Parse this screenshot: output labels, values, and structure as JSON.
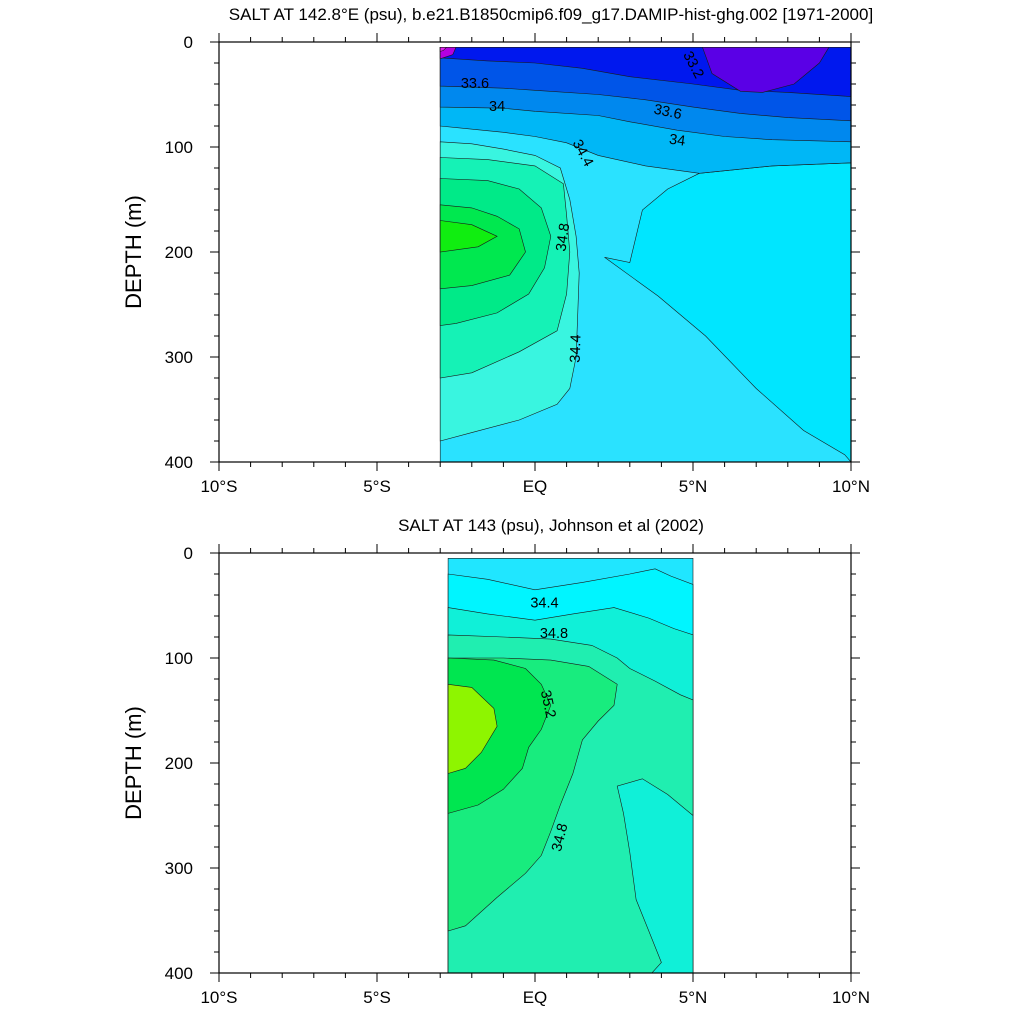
{
  "chart_data": [
    {
      "type": "contour",
      "title": "SALT AT 142.8°E (psu), b.e21.B1850cmip6.f09_g17.DAMIP-hist-ghg.002 [1971-2000]",
      "xlabel": "",
      "ylabel": "DEPTH (m)",
      "xlim": [
        -10,
        10
      ],
      "ylim": [
        400,
        0
      ],
      "x_ticks": [
        -10,
        -5,
        0,
        5,
        10
      ],
      "x_tick_labels": [
        "10°S",
        "5°S",
        "EQ",
        "5°N",
        "10°N"
      ],
      "y_ticks": [
        0,
        100,
        200,
        300,
        400
      ],
      "y_tick_labels": [
        "0",
        "100",
        "200",
        "300",
        "400"
      ],
      "data_extent": {
        "lat": [
          -3,
          10
        ],
        "depth": [
          5,
          400
        ]
      },
      "contour_interval": 0.2,
      "regions": [
        {
          "level": 34.2,
          "color": "#2ae2ff",
          "polygon": [
            [
              -3,
              5
            ],
            [
              10,
              5
            ],
            [
              10,
              400
            ],
            [
              -3,
              400
            ]
          ]
        },
        {
          "level": 34.4,
          "color": "#00e6ff",
          "polygon": [
            [
              3,
              210
            ],
            [
              3.4,
              160
            ],
            [
              4.2,
              140
            ],
            [
              5.2,
              125
            ],
            [
              7.5,
              118
            ],
            [
              10,
              115
            ],
            [
              10,
              400
            ],
            [
              9.8,
              393
            ],
            [
              8.5,
              370
            ],
            [
              7,
              330
            ],
            [
              5.4,
              280
            ],
            [
              3.9,
              242
            ],
            [
              2.2,
              205
            ]
          ]
        },
        {
          "level": 34.0,
          "color": "#00b7f6",
          "polygon": [
            [
              -3,
              5
            ],
            [
              10,
              5
            ],
            [
              10,
              115
            ],
            [
              7.5,
              118
            ],
            [
              5.2,
              125
            ],
            [
              3.5,
              118
            ],
            [
              2,
              108
            ],
            [
              1,
              96
            ],
            [
              0,
              90
            ],
            [
              -1,
              86
            ],
            [
              -3,
              80
            ]
          ]
        },
        {
          "level": 33.8,
          "color": "#0088ee",
          "polygon": [
            [
              -3,
              5
            ],
            [
              10,
              5
            ],
            [
              10,
              95
            ],
            [
              7.5,
              93
            ],
            [
              6,
              90
            ],
            [
              4.5,
              84
            ],
            [
              3,
              76
            ],
            [
              2,
              70
            ],
            [
              0,
              66
            ],
            [
              -1,
              63
            ],
            [
              -3,
              62
            ]
          ]
        },
        {
          "level": 33.6,
          "color": "#0055e8",
          "polygon": [
            [
              -3,
              5
            ],
            [
              10,
              5
            ],
            [
              10,
              75
            ],
            [
              8,
              72
            ],
            [
              6.5,
              68
            ],
            [
              5,
              62
            ],
            [
              3.5,
              55
            ],
            [
              2,
              50
            ],
            [
              0,
              46
            ],
            [
              -1,
              44
            ],
            [
              -3,
              42
            ]
          ]
        },
        {
          "level": 33.4,
          "color": "#0018ee",
          "polygon": [
            [
              -3,
              5
            ],
            [
              10,
              5
            ],
            [
              10,
              52
            ],
            [
              8,
              48
            ],
            [
              6.5,
              46
            ],
            [
              5,
              40
            ],
            [
              3,
              33
            ],
            [
              1.5,
              25
            ],
            [
              0,
              20
            ],
            [
              -1.5,
              18
            ],
            [
              -3,
              15
            ]
          ]
        },
        {
          "level": 33.2,
          "color": "#5a00e6",
          "polygon": [
            [
              5.3,
              5
            ],
            [
              9.3,
              5
            ],
            [
              9,
              20
            ],
            [
              8.2,
              40
            ],
            [
              7.2,
              48
            ],
            [
              6.5,
              47
            ],
            [
              5.6,
              30
            ]
          ]
        },
        {
          "level": 34.4,
          "color": "#39f5e0",
          "polygon": [
            [
              -3,
              95
            ],
            [
              -2,
              97
            ],
            [
              -1,
              102
            ],
            [
              0,
              108
            ],
            [
              0.8,
              120
            ],
            [
              1.1,
              150
            ],
            [
              1.3,
              185
            ],
            [
              1.4,
              220
            ],
            [
              1.35,
              260
            ],
            [
              1.3,
              300
            ],
            [
              1.1,
              330
            ],
            [
              0.7,
              345
            ],
            [
              -0.5,
              360
            ],
            [
              -2,
              372
            ],
            [
              -3,
              380
            ]
          ]
        },
        {
          "level": 34.6,
          "color": "#15f2b6",
          "polygon": [
            [
              -3,
              110
            ],
            [
              -1.5,
              112
            ],
            [
              0,
              118
            ],
            [
              0.9,
              135
            ],
            [
              1.0,
              165
            ],
            [
              1.1,
              200
            ],
            [
              1.0,
              240
            ],
            [
              0.7,
              275
            ],
            [
              -0.5,
              295
            ],
            [
              -2,
              315
            ],
            [
              -3,
              320
            ]
          ]
        },
        {
          "level": 34.8,
          "color": "#00ea88",
          "polygon": [
            [
              -3,
              130
            ],
            [
              -1.5,
              132
            ],
            [
              -0.5,
              140
            ],
            [
              0.2,
              158
            ],
            [
              0.5,
              185
            ],
            [
              0.3,
              215
            ],
            [
              -0.2,
              240
            ],
            [
              -1.2,
              258
            ],
            [
              -2.5,
              268
            ],
            [
              -3,
              270
            ]
          ]
        },
        {
          "level": 35.0,
          "color": "#00e84f",
          "polygon": [
            [
              -3,
              155
            ],
            [
              -2,
              158
            ],
            [
              -1.2,
              166
            ],
            [
              -0.5,
              178
            ],
            [
              -0.3,
              200
            ],
            [
              -0.8,
              222
            ],
            [
              -2,
              232
            ],
            [
              -3,
              235
            ]
          ]
        },
        {
          "level": 35.2,
          "color": "#10ee10",
          "polygon": [
            [
              -3,
              170
            ],
            [
              -2,
              174
            ],
            [
              -1.2,
              185
            ],
            [
              -1.8,
              195
            ],
            [
              -3,
              200
            ]
          ]
        },
        {
          "level": 33.0,
          "color": "#b400e0",
          "polygon": [
            [
              -3,
              5
            ],
            [
              -2.5,
              5
            ],
            [
              -2.6,
              12
            ],
            [
              -3,
              16
            ]
          ]
        },
        {
          "level": 32.8,
          "color": "#e21ef0",
          "polygon": [
            [
              -3,
              5
            ],
            [
              -2.8,
              5
            ],
            [
              -2.9,
              8
            ],
            [
              -3,
              9
            ]
          ]
        }
      ],
      "contour_labels": [
        {
          "text": "33.2",
          "x": 5.0,
          "y": 22,
          "angle": 62
        },
        {
          "text": "33.6",
          "x": -1.9,
          "y": 40,
          "angle": 0
        },
        {
          "text": "34",
          "x": -1.2,
          "y": 62,
          "angle": 0
        },
        {
          "text": "33.6",
          "x": 4.2,
          "y": 67,
          "angle": 12
        },
        {
          "text": "34",
          "x": 4.5,
          "y": 94,
          "angle": 8
        },
        {
          "text": "34.4",
          "x": 1.5,
          "y": 106,
          "angle": 62
        },
        {
          "text": "34.8",
          "x": 0.9,
          "y": 186,
          "angle": -82
        },
        {
          "text": "34.4",
          "x": 1.3,
          "y": 292,
          "angle": -88
        }
      ]
    },
    {
      "type": "contour",
      "title": "SALT AT 143 (psu), Johnson et al (2002)",
      "xlabel": "",
      "ylabel": "DEPTH (m)",
      "xlim": [
        -10,
        10
      ],
      "ylim": [
        400,
        0
      ],
      "x_ticks": [
        -10,
        -5,
        0,
        5,
        10
      ],
      "x_tick_labels": [
        "10°S",
        "5°S",
        "EQ",
        "5°N",
        "10°N"
      ],
      "y_ticks": [
        0,
        100,
        200,
        300,
        400
      ],
      "y_tick_labels": [
        "0",
        "100",
        "200",
        "300",
        "400"
      ],
      "data_extent": {
        "lat": [
          -2.75,
          5
        ],
        "depth": [
          5,
          400
        ]
      },
      "contour_interval": 0.2,
      "regions": [
        {
          "level": 34.2,
          "color": "#20e6ff",
          "polygon": [
            [
              -2.75,
              5
            ],
            [
              5,
              5
            ],
            [
              5,
              400
            ],
            [
              -2.75,
              400
            ]
          ]
        },
        {
          "level": 34.4,
          "color": "#00f5ff",
          "polygon": [
            [
              -2.75,
              20
            ],
            [
              -1.5,
              25
            ],
            [
              0,
              35
            ],
            [
              1.5,
              28
            ],
            [
              3,
              20
            ],
            [
              3.8,
              15
            ],
            [
              4.3,
              22
            ],
            [
              5,
              30
            ],
            [
              5,
              400
            ],
            [
              -2.75,
              400
            ]
          ]
        },
        {
          "level": 34.6,
          "color": "#10f0d8",
          "polygon": [
            [
              -2.75,
              52
            ],
            [
              -1.5,
              58
            ],
            [
              0,
              64
            ],
            [
              1.2,
              58
            ],
            [
              2.5,
              52
            ],
            [
              3.6,
              62
            ],
            [
              4.4,
              72
            ],
            [
              5,
              78
            ],
            [
              5,
              400
            ],
            [
              -2.75,
              400
            ]
          ]
        },
        {
          "level": 34.8,
          "color": "#20eeb0",
          "polygon": [
            [
              -2.75,
              78
            ],
            [
              -1,
              80
            ],
            [
              0.5,
              82
            ],
            [
              1.8,
              88
            ],
            [
              2.6,
              100
            ],
            [
              3,
              110
            ],
            [
              3.8,
              122
            ],
            [
              4.6,
              135
            ],
            [
              5,
              140
            ],
            [
              5,
              250
            ],
            [
              4.2,
              230
            ],
            [
              3.4,
              215
            ],
            [
              2.6,
              222
            ],
            [
              2.8,
              248
            ],
            [
              3,
              285
            ],
            [
              3.2,
              330
            ],
            [
              3.6,
              360
            ],
            [
              4,
              390
            ],
            [
              3.7,
              400
            ],
            [
              -2.75,
              400
            ]
          ]
        },
        {
          "level": 35.0,
          "color": "#18ec7e",
          "polygon": [
            [
              -2.75,
              100
            ],
            [
              -1,
              100
            ],
            [
              0.5,
              102
            ],
            [
              1.7,
              108
            ],
            [
              2.6,
              125
            ],
            [
              2.5,
              145
            ],
            [
              2,
              160
            ],
            [
              1.5,
              178
            ],
            [
              1.2,
              210
            ],
            [
              0.8,
              240
            ],
            [
              0.5,
              265
            ],
            [
              0.2,
              288
            ],
            [
              -0.3,
              305
            ],
            [
              -1.2,
              328
            ],
            [
              -2.2,
              355
            ],
            [
              -2.75,
              360
            ]
          ]
        },
        {
          "level": 35.2,
          "color": "#00e650",
          "polygon": [
            [
              -2.75,
              100
            ],
            [
              -1.3,
              102
            ],
            [
              -0.3,
              110
            ],
            [
              0.2,
              125
            ],
            [
              0.5,
              145
            ],
            [
              0.2,
              168
            ],
            [
              -0.2,
              185
            ],
            [
              -0.4,
              205
            ],
            [
              -1,
              225
            ],
            [
              -1.8,
              240
            ],
            [
              -2.75,
              248
            ]
          ]
        },
        {
          "level": 35.4,
          "color": "#8ef500",
          "polygon": [
            [
              -2.75,
              125
            ],
            [
              -2,
              128
            ],
            [
              -1.3,
              148
            ],
            [
              -1.2,
              165
            ],
            [
              -1.7,
              190
            ],
            [
              -2.2,
              205
            ],
            [
              -2.75,
              210
            ]
          ]
        }
      ],
      "contour_labels": [
        {
          "text": "34.4",
          "x": 0.3,
          "y": 48,
          "angle": 0
        },
        {
          "text": "34.8",
          "x": 0.6,
          "y": 77,
          "angle": 0
        },
        {
          "text": "35.2",
          "x": 0.4,
          "y": 144,
          "angle": 78
        },
        {
          "text": "34.8",
          "x": 0.8,
          "y": 271,
          "angle": -76
        }
      ]
    }
  ]
}
